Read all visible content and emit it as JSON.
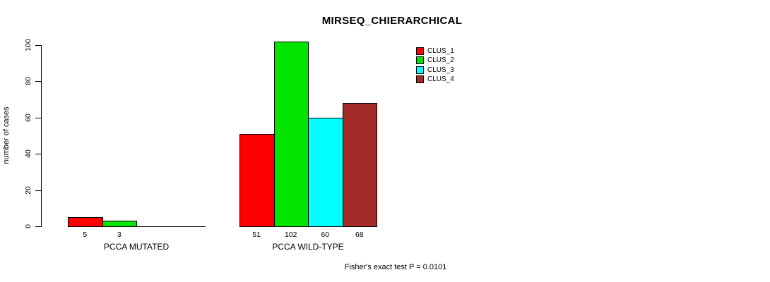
{
  "title": "MIRSEQ_CHIERARCHICAL",
  "footer": "Fisher's exact test P = 0.0101",
  "chart_data": {
    "type": "bar",
    "title": "MIRSEQ_CHIERARCHICAL",
    "xlabel": "",
    "ylabel": "number of cases",
    "ylim": [
      0,
      100
    ],
    "yticks": [
      0,
      20,
      40,
      60,
      80,
      100
    ],
    "grid": false,
    "legend_position": "top-right",
    "categories": [
      "PCCA MUTATED",
      "PCCA WILD-TYPE"
    ],
    "series": [
      {
        "name": "CLUS_1",
        "color": "#FF0000",
        "values": [
          5,
          51
        ]
      },
      {
        "name": "CLUS_2",
        "color": "#00E400",
        "values": [
          3,
          102
        ]
      },
      {
        "name": "CLUS_3",
        "color": "#00FFFF",
        "values": [
          0,
          60
        ]
      },
      {
        "name": "CLUS_4",
        "color": "#A52A2A",
        "values": [
          0,
          68
        ]
      }
    ],
    "value_labels_shown": true,
    "zero_bars_hidden": true,
    "annotation": "Fisher's exact test P = 0.0101"
  },
  "colors": {
    "background": "#FFFFFF",
    "axis": "#000000",
    "text": "#000000"
  }
}
